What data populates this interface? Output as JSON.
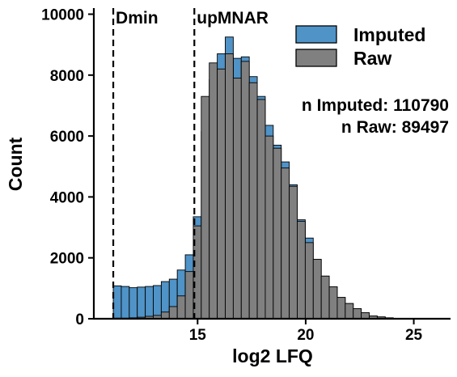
{
  "chart_data": {
    "type": "bar",
    "title": "",
    "xlabel": "log2 LFQ",
    "ylabel": "Count",
    "xlim": [
      10.2,
      26.7
    ],
    "ylim": [
      0,
      10200
    ],
    "xticks": [
      15,
      20,
      25
    ],
    "xtick_labels": [
      "15",
      "20",
      "25"
    ],
    "yticks": [
      0,
      2000,
      4000,
      6000,
      8000,
      10000
    ],
    "ytick_labels": [
      "0",
      "2000",
      "4000",
      "6000",
      "8000",
      "10000"
    ],
    "grid": false,
    "legend_position": "top-right",
    "bin_start": 11.1,
    "bin_width": 0.37,
    "series": [
      {
        "name": "Imputed",
        "color": "#4f93c7",
        "values": [
          1080,
          1060,
          1020,
          1040,
          1060,
          1090,
          1220,
          1300,
          1600,
          2100,
          3350,
          6150,
          7850,
          8700,
          9250,
          8550,
          8600,
          7950,
          7300,
          6350,
          5700,
          5150,
          4400,
          3250,
          2650,
          1950,
          1400,
          1050,
          700,
          500,
          330,
          200,
          90,
          60,
          30,
          10
        ]
      },
      {
        "name": "Raw",
        "color": "#808080",
        "values": [
          20,
          20,
          30,
          50,
          80,
          110,
          220,
          400,
          750,
          1550,
          3050,
          7300,
          8400,
          8200,
          8700,
          7900,
          8450,
          7750,
          7200,
          6000,
          5600,
          4950,
          4350,
          3200,
          2500,
          1950,
          1400,
          1050,
          700,
          500,
          330,
          200,
          90,
          60,
          30,
          10
        ]
      }
    ],
    "vlines": [
      {
        "x": 11.1,
        "label": "Dmin"
      },
      {
        "x": 14.85,
        "label": "upMNAR"
      }
    ],
    "annotations": [
      "n Imputed: 110790",
      "n Raw: 89497"
    ]
  }
}
